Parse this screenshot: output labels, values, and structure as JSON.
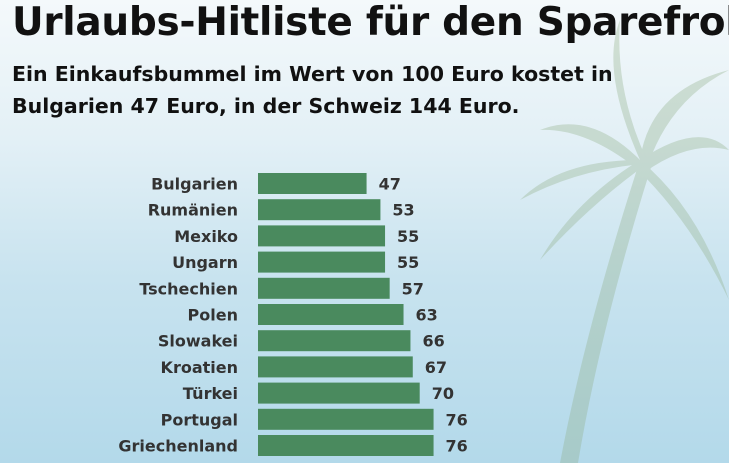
{
  "title": "Urlaubs-Hitliste für den Sparefroh",
  "subtitle": "Ein Einkaufsbummel im Wert von 100 Euro kostet in Bulgarien 47 Euro, in der Schweiz 144 Euro.",
  "colors": {
    "bar": "#4a8a5e",
    "text": "#111111",
    "label": "#333333"
  },
  "chart_data": {
    "type": "bar",
    "orientation": "horizontal",
    "title": "Urlaubs-Hitliste für den Sparefroh",
    "categories": [
      "Bulgarien",
      "Rumänien",
      "Mexiko",
      "Ungarn",
      "Tschechien",
      "Polen",
      "Slowakei",
      "Kroatien",
      "Türkei",
      "Portugal",
      "Griechenland"
    ],
    "values": [
      47,
      53,
      55,
      55,
      57,
      63,
      66,
      67,
      70,
      76,
      76
    ],
    "xlim": [
      0,
      144
    ],
    "data_labels": true,
    "grid": false
  }
}
